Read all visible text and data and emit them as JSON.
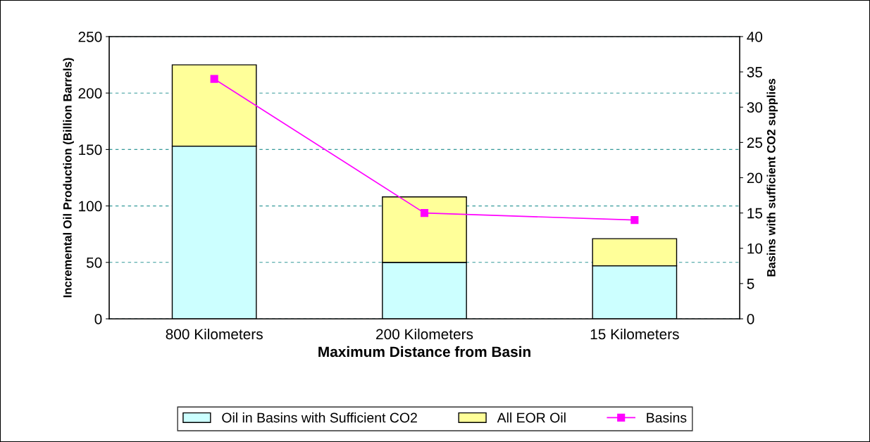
{
  "chart_data": {
    "type": "bar",
    "stacked": true,
    "xlabel": "Maximum Distance from Basin",
    "ylabel": "Incremental Oil Production (Billion Barrels)",
    "y2label": "Basins with sufficient CO2 supplies",
    "categories": [
      "800 Kilometers",
      "200 Kilometers",
      "15 Kilometers"
    ],
    "series": [
      {
        "name": "Oil in Basins with Sufficient CO2",
        "color": "#ccffff",
        "values": [
          153,
          50,
          47
        ]
      },
      {
        "name": "All EOR Oil",
        "color": "#ffff99",
        "values": [
          72,
          58,
          24
        ]
      },
      {
        "name": "Basins",
        "type": "line",
        "axis": "y2",
        "color": "#ff00ff",
        "values": [
          34,
          15,
          14
        ]
      }
    ],
    "ylim": [
      0,
      250
    ],
    "yticks": [
      0,
      50,
      100,
      150,
      200,
      250
    ],
    "y2lim": [
      0,
      40
    ],
    "y2ticks": [
      0,
      5,
      10,
      15,
      20,
      25,
      30,
      35,
      40
    ],
    "grid": "y",
    "legend": "bottom",
    "marker": "square",
    "line_style": "solid"
  }
}
